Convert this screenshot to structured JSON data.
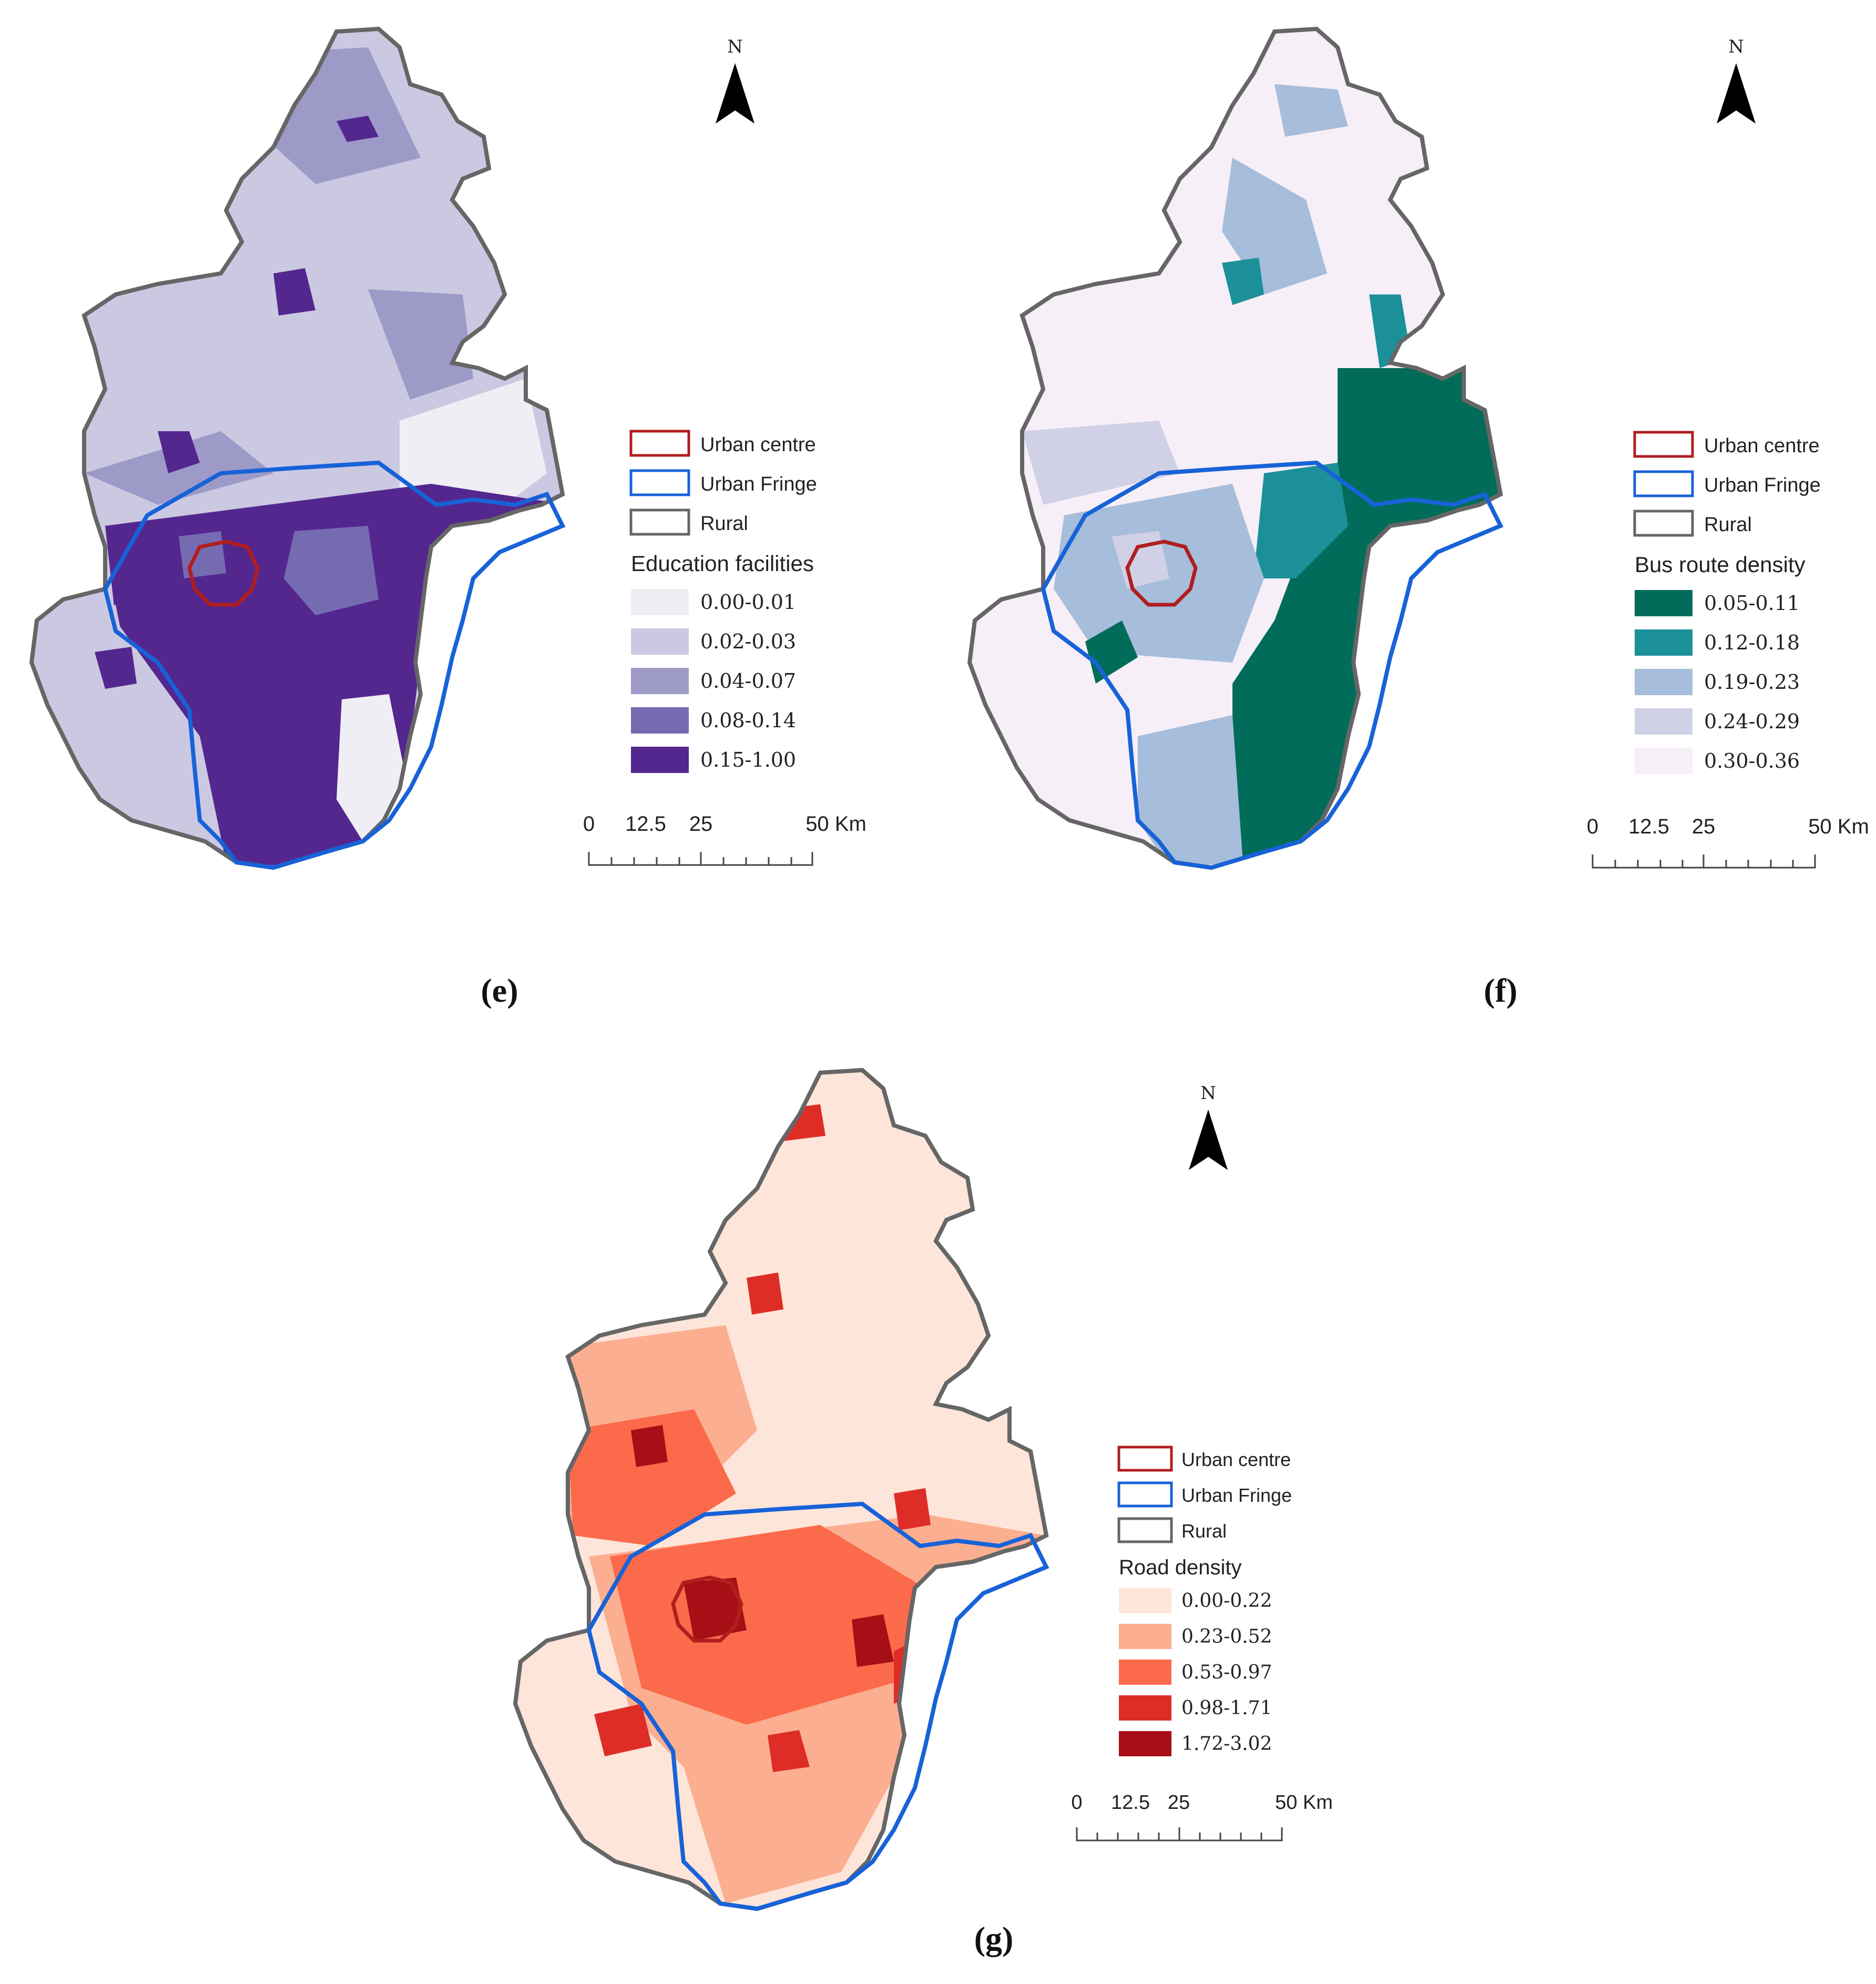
{
  "north_label": "N",
  "legend_common": {
    "urban_centre": "Urban centre",
    "urban_fringe": "Urban Fringe",
    "rural": "Rural",
    "urban_centre_color": "#b01e1e",
    "urban_fringe_color": "#1862d8",
    "rural_color": "#666666"
  },
  "scale_bar": {
    "labels": [
      "0",
      "12.5",
      "25",
      "50 Km"
    ]
  },
  "maps": [
    {
      "id": "e",
      "caption": "(e)",
      "legend_title": "Education facilities",
      "classes": [
        {
          "label": "0.00-0.01",
          "color": "#efeef5"
        },
        {
          "label": "0.02-0.03",
          "color": "#cbc9e2"
        },
        {
          "label": "0.04-0.07",
          "color": "#9e9ac8"
        },
        {
          "label": "0.08-0.14",
          "color": "#756bb1"
        },
        {
          "label": "0.15-1.00",
          "color": "#54278f"
        }
      ]
    },
    {
      "id": "f",
      "caption": "(f)",
      "legend_title": "Bus route density",
      "classes": [
        {
          "label": "0.05-0.11",
          "color": "#016c59"
        },
        {
          "label": "0.12-0.18",
          "color": "#1c9099"
        },
        {
          "label": "0.19-0.23",
          "color": "#a6bddb"
        },
        {
          "label": "0.24-0.29",
          "color": "#d0d1e6"
        },
        {
          "label": "0.30-0.36",
          "color": "#f6eff7"
        }
      ]
    },
    {
      "id": "g",
      "caption": "(g)",
      "legend_title": "Road density",
      "classes": [
        {
          "label": "0.00-0.22",
          "color": "#fee5d9"
        },
        {
          "label": "0.23-0.52",
          "color": "#fcae91"
        },
        {
          "label": "0.53-0.97",
          "color": "#fb6a4a"
        },
        {
          "label": "0.98-1.71",
          "color": "#de2d26"
        },
        {
          "label": "1.72-3.02",
          "color": "#a50f15"
        }
      ]
    }
  ]
}
